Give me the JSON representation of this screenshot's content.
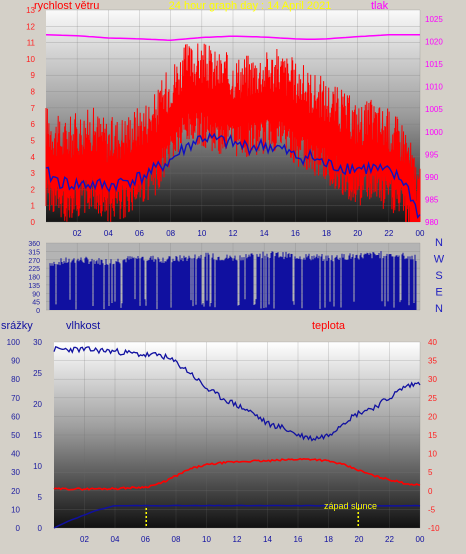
{
  "colors": {
    "wind": "#ff0000",
    "pressure": "#ff00ff",
    "gust_base": "#1010c0",
    "direction": "#1010a0",
    "humidity": "#1010a0",
    "temperature": "#ff0000",
    "rain": "#1010a0",
    "title": "#ffff00",
    "markers": "#ffff00",
    "tick_left": "#ff2020",
    "tick_right": "#ff00ff",
    "tick_blue": "#2020a0",
    "tick_x": "#1010a0",
    "compass": "#2020c0"
  },
  "chart_data": [
    {
      "type": "line",
      "title": "24 hour graph day : 14 April 2021",
      "left_axis_label": "rychlost větru",
      "right_axis_label": "tlak",
      "x_ticks": [
        "02",
        "04",
        "06",
        "08",
        "10",
        "12",
        "14",
        "16",
        "18",
        "20",
        "22",
        "00"
      ],
      "y_left_range": [
        0,
        13
      ],
      "y_left_ticks": [
        "0",
        "1",
        "2",
        "3",
        "4",
        "5",
        "6",
        "7",
        "8",
        "9",
        "10",
        "11",
        "12",
        "13"
      ],
      "y_right_range": [
        980,
        1027
      ],
      "y_right_ticks": [
        "980",
        "985",
        "990",
        "995",
        "1000",
        "1005",
        "1010",
        "1015",
        "1020",
        "1025"
      ],
      "series": [
        {
          "key": "wind",
          "points": [
            [
              0,
              4.5
            ],
            [
              1,
              3.5
            ],
            [
              2,
              4
            ],
            [
              3,
              4.3
            ],
            [
              4,
              3.6
            ],
            [
              5,
              3.9
            ],
            [
              6,
              4.5
            ],
            [
              7,
              5.2
            ],
            [
              8,
              7
            ],
            [
              9,
              8.2
            ],
            [
              10,
              8.3
            ],
            [
              11,
              7.8
            ],
            [
              12,
              7.5
            ],
            [
              13,
              7.6
            ],
            [
              14,
              7.8
            ],
            [
              15,
              7.9
            ],
            [
              16,
              7.2
            ],
            [
              17,
              6.6
            ],
            [
              18,
              6
            ],
            [
              19,
              5.4
            ],
            [
              20,
              4.6
            ],
            [
              21,
              4.8
            ],
            [
              22,
              4.2
            ],
            [
              23,
              3.5
            ],
            [
              24,
              0.5
            ]
          ]
        },
        {
          "key": "gust_base",
          "points": [
            [
              0,
              3
            ],
            [
              1,
              2.4
            ],
            [
              2,
              2.3
            ],
            [
              3,
              2.3
            ],
            [
              4,
              2.2
            ],
            [
              5,
              2.5
            ],
            [
              6,
              2.7
            ],
            [
              7,
              3.2
            ],
            [
              8,
              3.8
            ],
            [
              9,
              4.6
            ],
            [
              10,
              5.2
            ],
            [
              11,
              5
            ],
            [
              12,
              4.8
            ],
            [
              13,
              4.6
            ],
            [
              14,
              4.7
            ],
            [
              15,
              4.5
            ],
            [
              16,
              4
            ],
            [
              17,
              4
            ],
            [
              18,
              3.5
            ],
            [
              19,
              3.4
            ],
            [
              20,
              3.3
            ],
            [
              21,
              3.3
            ],
            [
              22,
              3
            ],
            [
              23,
              2.5
            ],
            [
              24,
              0.3
            ]
          ]
        },
        {
          "key": "pressure",
          "points": [
            [
              0,
              1021.5
            ],
            [
              2,
              1021.3
            ],
            [
              4,
              1020.8
            ],
            [
              6,
              1020.6
            ],
            [
              8,
              1020.3
            ],
            [
              10,
              1020.9
            ],
            [
              12,
              1021.2
            ],
            [
              14,
              1021.0
            ],
            [
              16,
              1020.6
            ],
            [
              17,
              1020.5
            ],
            [
              18,
              1020.6
            ],
            [
              20,
              1021.1
            ],
            [
              22,
              1021.5
            ],
            [
              24,
              1021.5
            ]
          ]
        }
      ]
    },
    {
      "type": "line",
      "title": "",
      "x_ticks": [
        "02",
        "04",
        "06",
        "08",
        "10",
        "12",
        "14",
        "16",
        "18",
        "20",
        "22",
        "00"
      ],
      "y_range": [
        0,
        360
      ],
      "y_ticks": [
        "0",
        "45",
        "90",
        "135",
        "180",
        "225",
        "270",
        "315",
        "360"
      ],
      "compass": [
        "N",
        "W",
        "S",
        "E",
        "N"
      ],
      "series": [
        {
          "key": "direction",
          "points": [
            [
              0,
              250
            ],
            [
              2,
              270
            ],
            [
              4,
              260
            ],
            [
              6,
              280
            ],
            [
              8,
              270
            ],
            [
              10,
              290
            ],
            [
              12,
              280
            ],
            [
              14,
              300
            ],
            [
              16,
              290
            ],
            [
              18,
              280
            ],
            [
              20,
              290
            ],
            [
              22,
              300
            ],
            [
              24,
              280
            ]
          ]
        }
      ]
    },
    {
      "type": "line",
      "title": "",
      "rain_axis_label": "srážky",
      "left_axis_label": "vlhkost",
      "right_axis_label": "teplota",
      "x_ticks": [
        "02",
        "04",
        "06",
        "08",
        "10",
        "12",
        "14",
        "16",
        "18",
        "20",
        "22",
        "00"
      ],
      "y_rain_range": [
        0,
        100
      ],
      "y_rain_ticks": [
        "0",
        "10",
        "20",
        "30",
        "40",
        "50",
        "60",
        "70",
        "80",
        "90",
        "100"
      ],
      "y_left_range": [
        0,
        30
      ],
      "y_left_ticks": [
        "0",
        "5",
        "10",
        "15",
        "20",
        "25",
        "30"
      ],
      "y_right_range": [
        -10,
        40
      ],
      "y_right_ticks": [
        "-10",
        "-5",
        "0",
        "5",
        "10",
        "15",
        "20",
        "25",
        "30",
        "35",
        "40"
      ],
      "annotations": [
        "západ slunce"
      ],
      "series": [
        {
          "key": "humidity",
          "points": [
            [
              0,
              96
            ],
            [
              2,
              96
            ],
            [
              4,
              95
            ],
            [
              6,
              93
            ],
            [
              7,
              93
            ],
            [
              8,
              89
            ],
            [
              9,
              83
            ],
            [
              10,
              75
            ],
            [
              11,
              70
            ],
            [
              12,
              66
            ],
            [
              13,
              62
            ],
            [
              14,
              56
            ],
            [
              15,
              54
            ],
            [
              16,
              50
            ],
            [
              17,
              48
            ],
            [
              18,
              50
            ],
            [
              19,
              57
            ],
            [
              20,
              62
            ],
            [
              21,
              65
            ],
            [
              22,
              70
            ],
            [
              23,
              76
            ],
            [
              24,
              78
            ]
          ]
        },
        {
          "key": "temperature",
          "points": [
            [
              0,
              0.5
            ],
            [
              2,
              0.5
            ],
            [
              4,
              0.6
            ],
            [
              6,
              1
            ],
            [
              7,
              2
            ],
            [
              8,
              4
            ],
            [
              9,
              6
            ],
            [
              10,
              7
            ],
            [
              11,
              7.5
            ],
            [
              12,
              7.8
            ],
            [
              13,
              8
            ],
            [
              14,
              8
            ],
            [
              15,
              8.3
            ],
            [
              16,
              8.5
            ],
            [
              17,
              8.5
            ],
            [
              18,
              8
            ],
            [
              19,
              7
            ],
            [
              20,
              5.5
            ],
            [
              21,
              4
            ],
            [
              22,
              3
            ],
            [
              23,
              2
            ],
            [
              24,
              1.5
            ]
          ]
        },
        {
          "key": "rain",
          "points": [
            [
              0,
              0
            ],
            [
              1,
              4
            ],
            [
              2,
              7
            ],
            [
              3,
              10
            ],
            [
              4,
              12
            ],
            [
              6,
              12
            ],
            [
              10,
              12
            ],
            [
              14,
              12
            ],
            [
              18,
              12
            ],
            [
              22,
              12
            ],
            [
              24,
              12
            ]
          ]
        }
      ]
    }
  ]
}
